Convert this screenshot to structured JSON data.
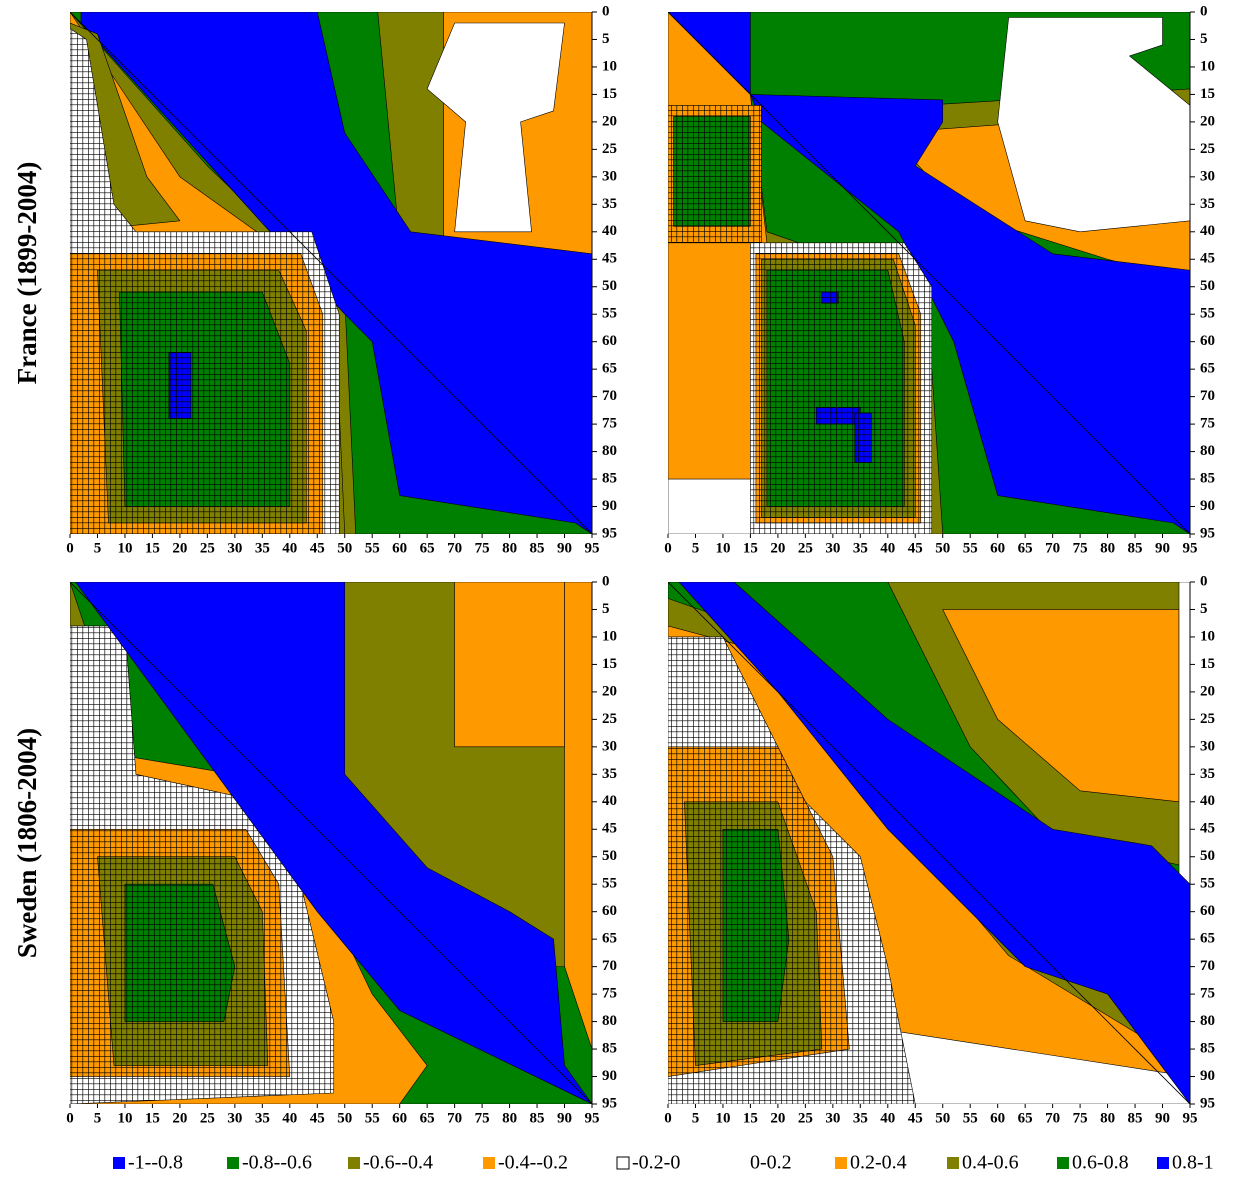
{
  "legend": [
    {
      "label": "-1--0.8",
      "color": "#0000ff",
      "hatched": true
    },
    {
      "label": "-0.8--0.6",
      "color": "#008000",
      "hatched": true
    },
    {
      "label": "-0.6--0.4",
      "color": "#808000",
      "hatched": true
    },
    {
      "label": "-0.4--0.2",
      "color": "#ff9900",
      "hatched": true
    },
    {
      "label": "-0.2-0",
      "color": "#ffffff",
      "hatched": true
    },
    {
      "label": "0-0.2",
      "color": "#ffffff",
      "hatched": false
    },
    {
      "label": "0.2-0.4",
      "color": "#ff9900",
      "hatched": false
    },
    {
      "label": "0.4-0.6",
      "color": "#808000",
      "hatched": false
    },
    {
      "label": "0.6-0.8",
      "color": "#008000",
      "hatched": false
    },
    {
      "label": "0.8-1",
      "color": "#0000ff",
      "hatched": false
    }
  ],
  "chart_data": [
    {
      "type": "contour",
      "ylabel": "France (1899-2004)",
      "xlim": [
        0,
        95
      ],
      "ylim": [
        95,
        0
      ],
      "xticks": [
        0,
        5,
        10,
        15,
        20,
        25,
        30,
        35,
        40,
        45,
        50,
        55,
        60,
        65,
        70,
        75,
        80,
        85,
        90,
        95
      ],
      "yticks": [
        0,
        5,
        10,
        15,
        20,
        25,
        30,
        35,
        40,
        45,
        50,
        55,
        60,
        65,
        70,
        75,
        80,
        85,
        90,
        95
      ]
    },
    {
      "type": "contour",
      "xlim": [
        0,
        95
      ],
      "ylim": [
        95,
        0
      ],
      "xticks": [
        0,
        5,
        10,
        15,
        20,
        25,
        30,
        35,
        40,
        45,
        50,
        55,
        60,
        65,
        70,
        75,
        80,
        85,
        90,
        95
      ],
      "yticks": [
        0,
        5,
        10,
        15,
        20,
        25,
        30,
        35,
        40,
        45,
        50,
        55,
        60,
        65,
        70,
        75,
        80,
        85,
        90,
        95
      ]
    },
    {
      "type": "contour",
      "ylabel": "Sweden (1806-2004)",
      "xlim": [
        0,
        95
      ],
      "ylim": [
        95,
        0
      ],
      "xticks": [
        0,
        5,
        10,
        15,
        20,
        25,
        30,
        35,
        40,
        45,
        50,
        55,
        60,
        65,
        70,
        75,
        80,
        85,
        90,
        95
      ],
      "yticks": [
        0,
        5,
        10,
        15,
        20,
        25,
        30,
        35,
        40,
        45,
        50,
        55,
        60,
        65,
        70,
        75,
        80,
        85,
        90,
        95
      ]
    },
    {
      "type": "contour",
      "xlim": [
        0,
        95
      ],
      "ylim": [
        95,
        0
      ],
      "xticks": [
        0,
        5,
        10,
        15,
        20,
        25,
        30,
        35,
        40,
        45,
        50,
        55,
        60,
        65,
        70,
        75,
        80,
        85,
        90,
        95
      ],
      "yticks": [
        0,
        5,
        10,
        15,
        20,
        25,
        30,
        35,
        40,
        45,
        50,
        55,
        60,
        65,
        70,
        75,
        80,
        85,
        90,
        95
      ]
    }
  ]
}
